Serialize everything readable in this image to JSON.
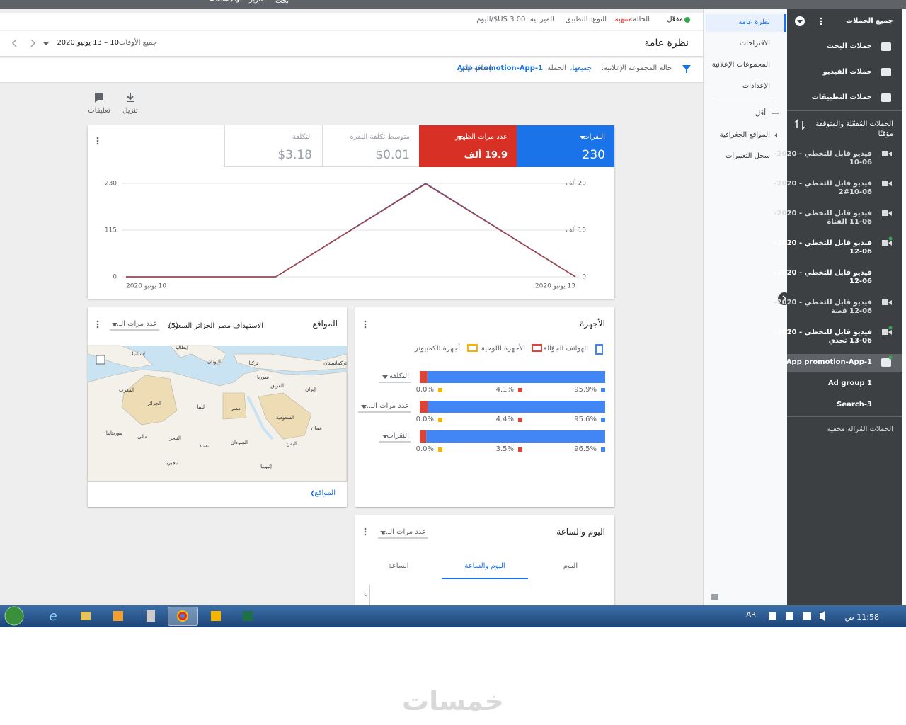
{
  "topbar": {
    "items": [
      "والإعدادات",
      "تقارير",
      "بحث"
    ]
  },
  "status": {
    "enabled": "مفعّل",
    "status_label": "الحالة:",
    "status_value": "منتهية",
    "type": "النوع: التطبيق",
    "budget": "الميزانية: 3.00 US$/اليوم"
  },
  "header": {
    "title": "نظرة عامة",
    "range_label": "جميع الأوقات",
    "range": "10 – 13 يونيو 2020"
  },
  "filter": {
    "status_label": "حالة المجموعة الإعلانية:",
    "status_value": "جميعها،",
    "campaign_label": "الحملة:",
    "campaign_value": "App promotion-App-1",
    "add": "إضافة فلتر"
  },
  "toolbar": {
    "download": "تنزيل",
    "feedback": "تعليقات"
  },
  "scorecards": [
    {
      "value": "230"
    },
    {
      "value": "19.9 ألف"
    },
    {
      "label": "متوسط تكلفة النقرة",
      "value": "$0.01"
    },
    {
      "label": "التكلفة",
      "value": "$3.18"
    }
  ],
  "chart_data": [
    {
      "type": "line",
      "categories": [
        "10 يونيو 2020",
        null,
        null,
        "13 يونيو 2020"
      ],
      "series": [
        {
          "name": "النقرات",
          "color": "#1a73e8",
          "values": [
            0,
            0,
            230,
            0
          ]
        },
        {
          "name": "عدد مرات الظهور",
          "color": "#a8413f",
          "axis": "y2",
          "values": [
            0,
            0,
            19.9,
            0
          ]
        }
      ],
      "ylim": [
        0,
        230
      ],
      "yticks": [
        0,
        115,
        230
      ],
      "y2lim": [
        0,
        20
      ],
      "y2ticks": [
        0,
        {
          "value": 10,
          "label": "10 ألف"
        },
        {
          "value": 20,
          "label": "20 ألف"
        }
      ],
      "grid": true
    },
    {
      "type": "bar",
      "orientation": "horizontal",
      "stacked": true,
      "categories": [
        "التكلفة",
        "عدد مرات الـ...",
        "النقرات"
      ],
      "series": [
        {
          "name": "الهواتف الجوّالة",
          "color": "#4285f4",
          "values": [
            95.9,
            95.6,
            96.5
          ],
          "value_labels": [
            "95.9%",
            "95.6%",
            "96.5%"
          ]
        },
        {
          "name": "الأجهزة اللوحية",
          "color": "#db4437",
          "values": [
            4.1,
            4.4,
            3.5
          ],
          "value_labels": [
            "4.1%",
            "4.4%",
            "3.5%"
          ]
        },
        {
          "name": "أجهزة الكمبيوتر",
          "color": "#f4b400",
          "values": [
            0,
            0,
            0
          ],
          "value_labels": [
            "0.0%",
            "0.0%",
            "0.0%"
          ]
        }
      ],
      "xlim": [
        0,
        100
      ]
    }
  ],
  "locations": {
    "title": "المواقع",
    "targeting": "الاستهداف مصر الجزائر السعو...",
    "count": "(5)",
    "metric": "عدد مرات الـ...",
    "footer": "المواقع",
    "map_labels": [
      "إسبانيا",
      "إيطاليا",
      "اليونان",
      "تركيا",
      "تركمانستان",
      "سوريا",
      "العراق",
      "إيران",
      "المغرب",
      "الجزائر",
      "ليبيا",
      "مصر",
      "السعودية",
      "موريتانيا",
      "مالي",
      "النيجر",
      "تشاد",
      "السودان",
      "اليمن",
      "عمان",
      "نيجيريا",
      "إثيوبيا"
    ]
  },
  "devices": {
    "title": "الأجهزة"
  },
  "day_hour": {
    "title": "اليوم والساعة",
    "metric": "عدد مرات الـ...",
    "tabs": [
      "اليوم",
      "اليوم والساعة",
      "الساعة"
    ],
    "axis_fragment": "ح"
  },
  "nav": {
    "items": [
      "نظرة عامة",
      "الاقتراحات",
      "المجموعات الإعلانية",
      "الإعدادات"
    ],
    "less": "أقل",
    "more_items": [
      "المواقع الجغرافية",
      "سجل التغييرات"
    ]
  },
  "sidebar": {
    "title": "جميع الحملات",
    "types": [
      "حملات البحث",
      "حملات الفيديو",
      "حملات التطبيقات"
    ],
    "filter_lines": [
      "الحملات المُفعّلة والمتوقفة",
      "مؤقتًا"
    ],
    "campaigns": [
      {
        "line1": "فيديو قابل للتخطي - 2020-",
        "line2": "10-06"
      },
      {
        "line1": "فيديو قابل للتخطي - 2020-",
        "line2": "2#10-06"
      },
      {
        "line1": "فيديو قابل للتخطي - 2020-",
        "line2": "11-06 القناة"
      },
      {
        "line1": "فيديو قابل للتخطي - 2020-",
        "line2": "12-06"
      },
      {
        "line1": "فيديو قابل للتخطي - 2020-",
        "line2": "12-06"
      },
      {
        "line1": "فيديو قابل للتخطي - 2020-",
        "line2": "12-06 قصة"
      },
      {
        "line1": "فيديو قابل للتخطي - 2020-",
        "line2": "13-06 تحدي"
      }
    ],
    "selected": "App promotion-App-1",
    "children": [
      "Ad group 1",
      "Search-3"
    ],
    "removed": "الحملات المُزالة مخفية"
  },
  "taskbar": {
    "lang": "AR",
    "clock": "11:58 ص"
  },
  "watermark": "خمسات"
}
